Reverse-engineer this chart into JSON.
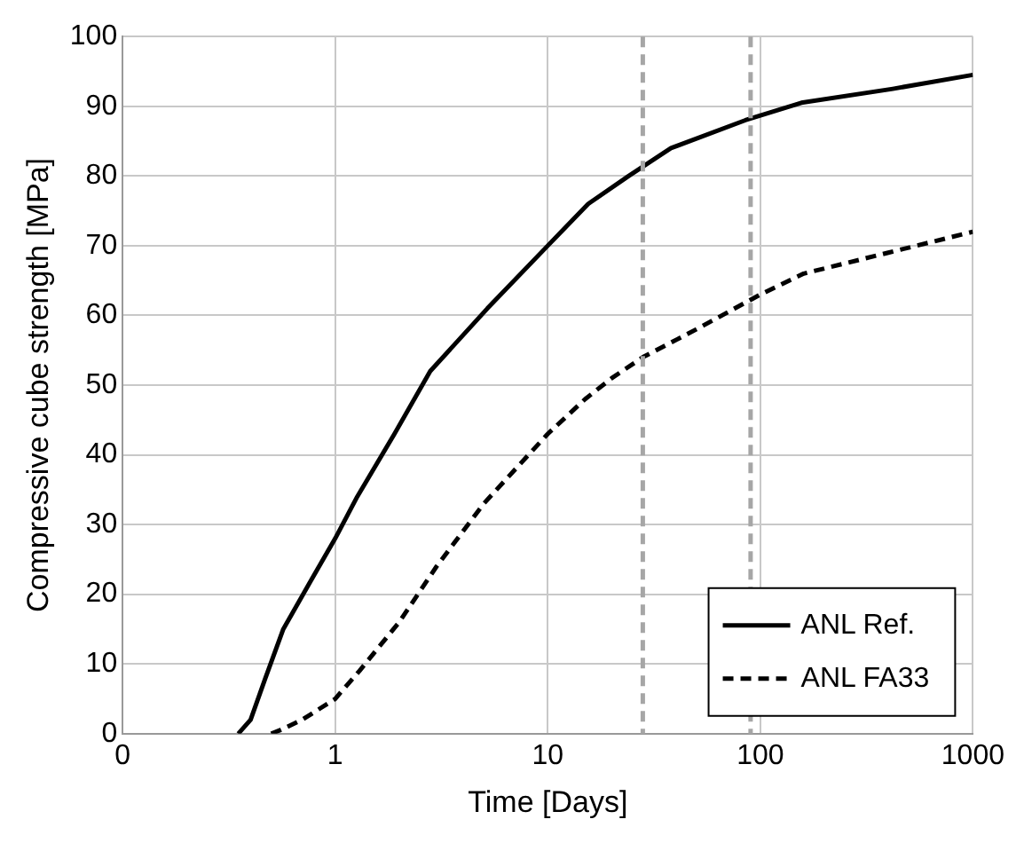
{
  "chart_data": {
    "type": "line",
    "xlabel": "Time [Days]",
    "ylabel": "Compressive cube strength [MPa]",
    "xlim": [
      0.1,
      1000
    ],
    "xticks": [
      {
        "value": 0.1,
        "label": "0"
      },
      1,
      10,
      100,
      1000
    ],
    "ylim": [
      0,
      100
    ],
    "yticks": [
      0,
      10,
      20,
      30,
      40,
      50,
      60,
      70,
      80,
      90,
      100
    ],
    "log": "x",
    "grid": true,
    "legend": "bottom right",
    "marker": "none",
    "series": [
      {
        "name": "ANL Ref.",
        "color": "#000000",
        "line_style": "solid",
        "x": [
          0.35,
          0.4,
          0.47,
          0.57,
          0.77,
          1,
          1.27,
          1.9,
          2.8,
          5.2,
          10,
          15.5,
          24,
          38,
          85,
          156,
          420,
          1000
        ],
        "values": [
          0,
          2,
          8,
          15,
          22,
          28,
          34,
          43,
          52,
          61,
          70,
          76,
          80,
          84,
          88,
          90.5,
          92.5,
          94.5
        ]
      },
      {
        "name": "ANL FA33",
        "color": "#000000",
        "line_style": "dashed",
        "x": [
          0.5,
          0.55,
          0.7,
          1,
          1.3,
          2,
          3,
          5,
          10,
          15,
          20,
          28,
          50,
          100,
          160,
          400,
          1000
        ],
        "values": [
          0,
          0.5,
          2,
          5,
          9,
          16,
          24,
          33,
          43,
          48,
          51,
          54,
          58,
          63,
          66,
          69,
          72
        ]
      }
    ],
    "ref_lines": [
      {
        "axis": "x",
        "value": 28,
        "color": "#a6a6a6",
        "line_style": "dashed"
      },
      {
        "axis": "x",
        "value": 90,
        "color": "#a6a6a6",
        "line_style": "dashed"
      }
    ]
  }
}
